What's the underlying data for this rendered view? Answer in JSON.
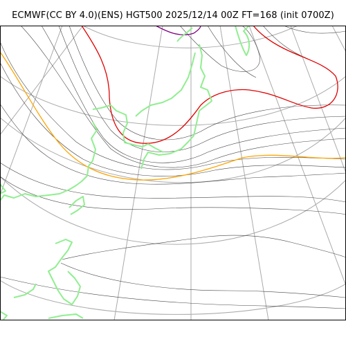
{
  "title": "ECMWF(CC BY 4.0)(ENS) HGT500 2025/12/14 00Z FT=168 (init 0700Z)",
  "map": {
    "model": "ECMWF",
    "license": "CC BY 4.0",
    "product": "ENS",
    "field": "HGT500",
    "valid_time": "2025/12/14 00Z",
    "forecast_hour": 168,
    "init": "0700Z",
    "colors": {
      "coastline": "#90ee90",
      "graticule": "#aaaaaa",
      "contour": "#444444",
      "highlight_red": "#e00000",
      "highlight_orange": "#ffa500",
      "highlight_purple": "#800080"
    }
  }
}
